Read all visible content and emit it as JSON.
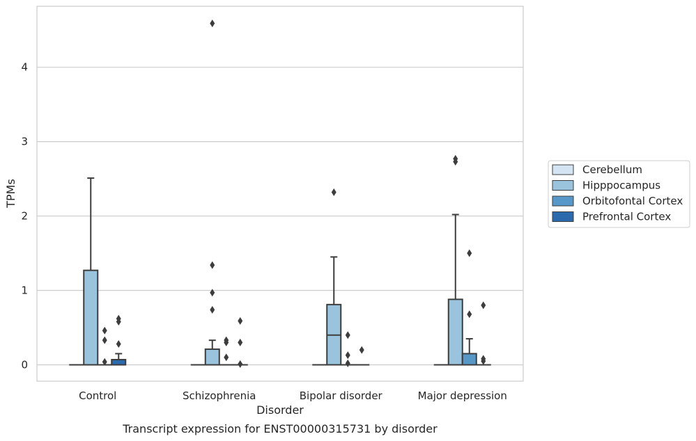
{
  "chart_data": {
    "type": "box",
    "caption": "Transcript expression for ENST00000315731 by disorder",
    "xlabel": "Disorder",
    "ylabel": "TPMs",
    "ylim": [
      -0.22,
      4.82
    ],
    "yticks": [
      0,
      1,
      2,
      3,
      4
    ],
    "grid": true,
    "legend_position": "right",
    "categories": [
      "Control",
      "Schizophrenia",
      "Bipolar disorder",
      "Major depression"
    ],
    "series": [
      {
        "name": "Cerebellum",
        "color": "#d4e4f2",
        "boxes": [
          {
            "q1": 0,
            "median": 0,
            "q3": 0,
            "whisker_low": 0,
            "whisker_high": 0,
            "outliers": []
          },
          {
            "q1": 0,
            "median": 0,
            "q3": 0,
            "whisker_low": 0,
            "whisker_high": 0,
            "outliers": []
          },
          {
            "q1": 0,
            "median": 0,
            "q3": 0,
            "whisker_low": 0,
            "whisker_high": 0,
            "outliers": []
          },
          {
            "q1": 0,
            "median": 0,
            "q3": 0,
            "whisker_low": 0,
            "whisker_high": 0,
            "outliers": []
          }
        ]
      },
      {
        "name": "Hipppocampus",
        "color": "#9ac4de",
        "boxes": [
          {
            "q1": 0,
            "median": 0,
            "q3": 1.27,
            "whisker_low": 0,
            "whisker_high": 2.51,
            "outliers": []
          },
          {
            "q1": 0,
            "median": 0,
            "q3": 0.21,
            "whisker_low": 0,
            "whisker_high": 0.33,
            "outliers": [
              0.74,
              0.97,
              1.34,
              4.59
            ]
          },
          {
            "q1": 0,
            "median": 0.4,
            "q3": 0.81,
            "whisker_low": 0,
            "whisker_high": 1.45,
            "outliers": [
              2.32
            ]
          },
          {
            "q1": 0,
            "median": 0,
            "q3": 0.88,
            "whisker_low": 0,
            "whisker_high": 2.02,
            "outliers": [
              2.73,
              2.77
            ]
          }
        ]
      },
      {
        "name": "Orbitofontal Cortex",
        "color": "#5898c8",
        "boxes": [
          {
            "q1": 0,
            "median": 0,
            "q3": 0,
            "whisker_low": 0,
            "whisker_high": 0,
            "outliers": [
              0.04,
              0.33,
              0.46
            ]
          },
          {
            "q1": 0,
            "median": 0,
            "q3": 0,
            "whisker_low": 0,
            "whisker_high": 0,
            "outliers": [
              0.1,
              0.3,
              0.33
            ]
          },
          {
            "q1": 0,
            "median": 0,
            "q3": 0,
            "whisker_low": 0,
            "whisker_high": 0,
            "outliers": [
              0.02,
              0.13,
              0.4
            ]
          },
          {
            "q1": 0,
            "median": 0,
            "q3": 0.15,
            "whisker_low": 0,
            "whisker_high": 0.35,
            "outliers": [
              0.68,
              1.5
            ]
          }
        ]
      },
      {
        "name": "Prefrontal Cortex",
        "color": "#2a6aad",
        "boxes": [
          {
            "q1": 0,
            "median": 0,
            "q3": 0.07,
            "whisker_low": 0,
            "whisker_high": 0.15,
            "outliers": [
              0.28,
              0.58,
              0.62
            ]
          },
          {
            "q1": 0,
            "median": 0,
            "q3": 0,
            "whisker_low": 0,
            "whisker_high": 0,
            "outliers": [
              0.01,
              0.3,
              0.59
            ]
          },
          {
            "q1": 0,
            "median": 0,
            "q3": 0,
            "whisker_low": 0,
            "whisker_high": 0,
            "outliers": [
              0.2
            ]
          },
          {
            "q1": 0,
            "median": 0,
            "q3": 0,
            "whisker_low": 0,
            "whisker_high": 0,
            "outliers": [
              0.05,
              0.08,
              0.8
            ]
          }
        ]
      }
    ]
  }
}
